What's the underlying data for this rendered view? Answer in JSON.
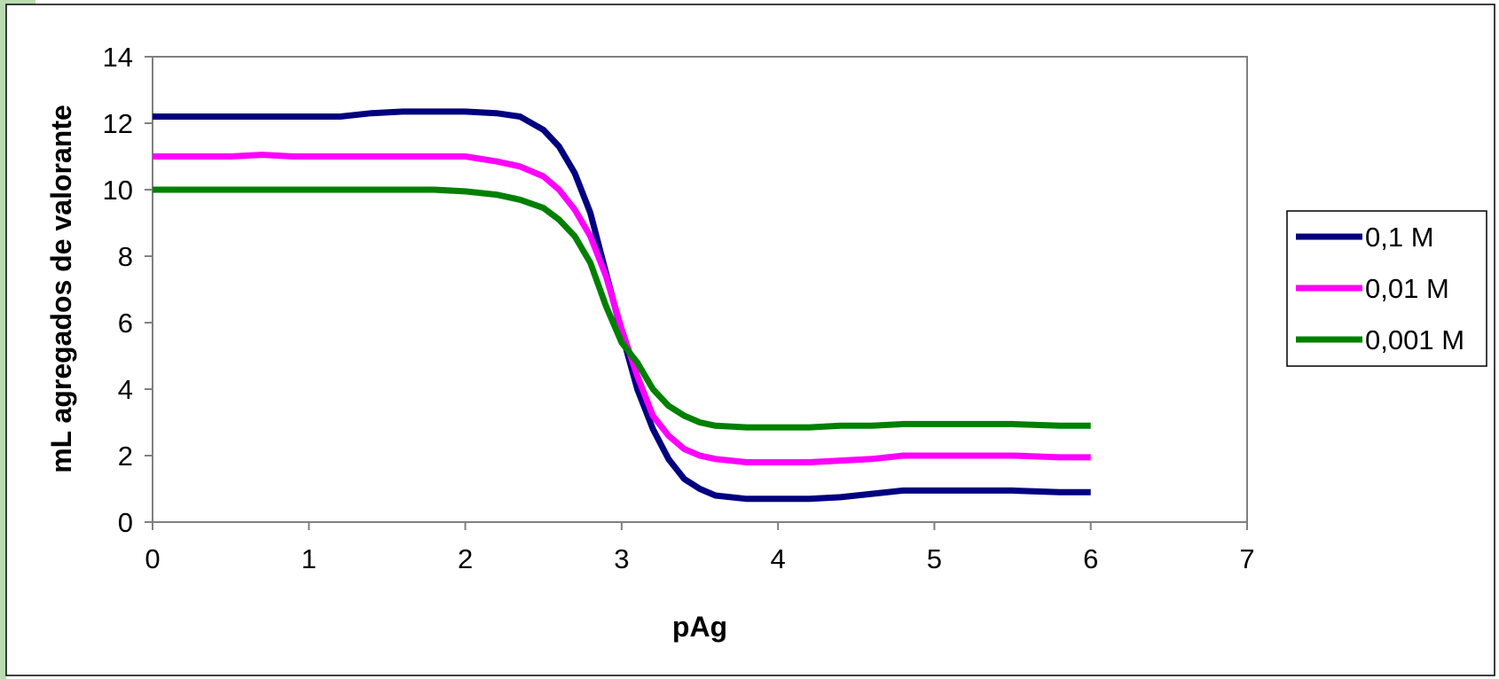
{
  "chart_data": {
    "type": "line",
    "title": "",
    "xlabel": "pAg",
    "ylabel": "mL agregados de valorante",
    "xlim": [
      0,
      7
    ],
    "ylim": [
      0,
      14
    ],
    "xticks": [
      "0",
      "1",
      "2",
      "3",
      "4",
      "5",
      "6",
      "7"
    ],
    "yticks": [
      "0",
      "2",
      "4",
      "6",
      "8",
      "10",
      "12",
      "14"
    ],
    "grid": false,
    "legend_position": "right",
    "series": [
      {
        "name": "0,1 M",
        "color": "#000080",
        "x": [
          0,
          0.5,
          1,
          1.2,
          1.4,
          1.6,
          1.8,
          2,
          2.2,
          2.35,
          2.5,
          2.6,
          2.7,
          2.8,
          2.9,
          3,
          3.1,
          3.2,
          3.3,
          3.4,
          3.5,
          3.6,
          3.8,
          4,
          4.2,
          4.4,
          4.6,
          4.8,
          5,
          5.2,
          5.5,
          5.8,
          6
        ],
        "y": [
          12.2,
          12.2,
          12.2,
          12.2,
          12.3,
          12.35,
          12.35,
          12.35,
          12.3,
          12.2,
          11.8,
          11.3,
          10.5,
          9.3,
          7.5,
          5.7,
          4.0,
          2.8,
          1.9,
          1.3,
          1.0,
          0.8,
          0.7,
          0.7,
          0.7,
          0.75,
          0.85,
          0.95,
          0.95,
          0.95,
          0.95,
          0.9,
          0.9
        ]
      },
      {
        "name": "0,01 M",
        "color": "#ff00ff",
        "x": [
          0,
          0.5,
          0.7,
          0.9,
          1.2,
          1.5,
          1.8,
          2,
          2.2,
          2.35,
          2.5,
          2.6,
          2.7,
          2.8,
          2.9,
          3,
          3.1,
          3.2,
          3.3,
          3.4,
          3.5,
          3.6,
          3.8,
          4,
          4.2,
          4.4,
          4.6,
          4.8,
          5,
          5.2,
          5.5,
          5.8,
          6
        ],
        "y": [
          11.0,
          11.0,
          11.05,
          11.0,
          11.0,
          11.0,
          11.0,
          11.0,
          10.85,
          10.7,
          10.4,
          10.0,
          9.4,
          8.6,
          7.4,
          5.8,
          4.4,
          3.2,
          2.6,
          2.2,
          2.0,
          1.9,
          1.8,
          1.8,
          1.8,
          1.85,
          1.9,
          2.0,
          2.0,
          2.0,
          2.0,
          1.95,
          1.95
        ]
      },
      {
        "name": "0,001 M",
        "color": "#008000",
        "x": [
          0,
          0.5,
          1,
          1.5,
          1.8,
          2,
          2.2,
          2.35,
          2.5,
          2.6,
          2.7,
          2.8,
          2.9,
          3,
          3.1,
          3.2,
          3.3,
          3.4,
          3.5,
          3.6,
          3.8,
          4,
          4.2,
          4.4,
          4.6,
          4.8,
          5,
          5.2,
          5.5,
          5.8,
          6
        ],
        "y": [
          10.0,
          10.0,
          10.0,
          10.0,
          10.0,
          9.95,
          9.85,
          9.7,
          9.45,
          9.1,
          8.6,
          7.8,
          6.5,
          5.4,
          4.8,
          4.0,
          3.5,
          3.2,
          3.0,
          2.9,
          2.85,
          2.85,
          2.85,
          2.9,
          2.9,
          2.95,
          2.95,
          2.95,
          2.95,
          2.9,
          2.9
        ]
      }
    ]
  },
  "colors": {
    "frame_accent": "#b8dcb0",
    "axis": "#808080",
    "text": "#000000"
  }
}
